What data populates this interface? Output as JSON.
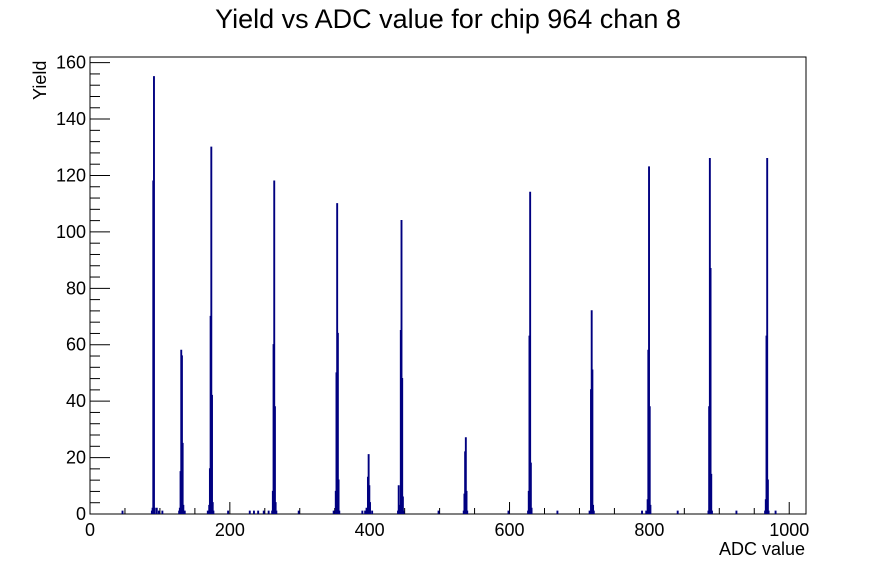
{
  "chart_data": {
    "type": "bar",
    "title": "Yield vs ADC value for chip 964 chan 8",
    "xlabel": "ADC value",
    "ylabel": "Yield",
    "xlim": [
      0,
      1024
    ],
    "ylim": [
      0,
      162
    ],
    "x_ticks": [
      0,
      200,
      400,
      600,
      800,
      1000
    ],
    "y_ticks": [
      0,
      20,
      40,
      60,
      80,
      100,
      120,
      140,
      160
    ],
    "grid": false,
    "bin_width": 1,
    "line_color": "#000080",
    "series": [
      {
        "values": [
          [
            46,
            1
          ],
          [
            88,
            1
          ],
          [
            89,
            2
          ],
          [
            90,
            118
          ],
          [
            91,
            155
          ],
          [
            92,
            2
          ],
          [
            95,
            2
          ],
          [
            98,
            1
          ],
          [
            103,
            1
          ],
          [
            127,
            1
          ],
          [
            128,
            2
          ],
          [
            129,
            15
          ],
          [
            130,
            58
          ],
          [
            131,
            56
          ],
          [
            132,
            25
          ],
          [
            133,
            3
          ],
          [
            135,
            1
          ],
          [
            168,
            1
          ],
          [
            170,
            3
          ],
          [
            171,
            16
          ],
          [
            172,
            70
          ],
          [
            173,
            130
          ],
          [
            174,
            42
          ],
          [
            175,
            4
          ],
          [
            176,
            1
          ],
          [
            197,
            1
          ],
          [
            228,
            1
          ],
          [
            234,
            1
          ],
          [
            240,
            1
          ],
          [
            248,
            1
          ],
          [
            255,
            1
          ],
          [
            260,
            1
          ],
          [
            261,
            8
          ],
          [
            262,
            60
          ],
          [
            263,
            118
          ],
          [
            264,
            38
          ],
          [
            265,
            4
          ],
          [
            266,
            1
          ],
          [
            298,
            1
          ],
          [
            348,
            1
          ],
          [
            351,
            8
          ],
          [
            352,
            50
          ],
          [
            353,
            110
          ],
          [
            354,
            64
          ],
          [
            355,
            12
          ],
          [
            356,
            1
          ],
          [
            389,
            1
          ],
          [
            393,
            1
          ],
          [
            395,
            2
          ],
          [
            397,
            13
          ],
          [
            398,
            21
          ],
          [
            399,
            10
          ],
          [
            400,
            4
          ],
          [
            403,
            1
          ],
          [
            440,
            1
          ],
          [
            441,
            10
          ],
          [
            442,
            3
          ],
          [
            444,
            65
          ],
          [
            445,
            104
          ],
          [
            446,
            48
          ],
          [
            447,
            6
          ],
          [
            448,
            1
          ],
          [
            498,
            1
          ],
          [
            534,
            1
          ],
          [
            535,
            7
          ],
          [
            536,
            22
          ],
          [
            537,
            27
          ],
          [
            538,
            8
          ],
          [
            539,
            1
          ],
          [
            598,
            1
          ],
          [
            626,
            1
          ],
          [
            627,
            8
          ],
          [
            628,
            63
          ],
          [
            629,
            114
          ],
          [
            630,
            18
          ],
          [
            631,
            2
          ],
          [
            668,
            1
          ],
          [
            714,
            1
          ],
          [
            716,
            44
          ],
          [
            717,
            72
          ],
          [
            718,
            51
          ],
          [
            719,
            3
          ],
          [
            720,
            1
          ],
          [
            789,
            1
          ],
          [
            795,
            1
          ],
          [
            797,
            5
          ],
          [
            798,
            58
          ],
          [
            799,
            123
          ],
          [
            800,
            38
          ],
          [
            801,
            3
          ],
          [
            840,
            1
          ],
          [
            884,
            1
          ],
          [
            885,
            38
          ],
          [
            886,
            126
          ],
          [
            887,
            87
          ],
          [
            888,
            14
          ],
          [
            889,
            1
          ],
          [
            924,
            1
          ],
          [
            965,
            1
          ],
          [
            966,
            5
          ],
          [
            967,
            63
          ],
          [
            968,
            126
          ],
          [
            969,
            12
          ],
          [
            970,
            1
          ],
          [
            980,
            1
          ]
        ]
      }
    ]
  }
}
